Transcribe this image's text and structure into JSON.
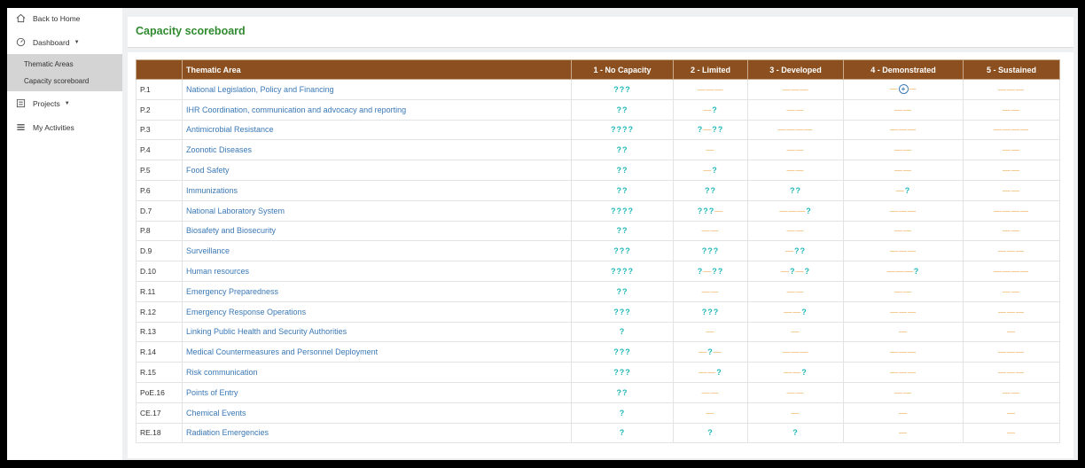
{
  "sidebar": {
    "back_home": "Back to Home",
    "dashboard": "Dashboard",
    "thematic_areas": "Thematic Areas",
    "capacity_scoreboard": "Capacity scoreboard",
    "projects": "Projects",
    "my_activities": "My Activities"
  },
  "page_title": "Capacity scoreboard",
  "table": {
    "headers": [
      "Thematic Area",
      "1 - No Capacity",
      "2 - Limited",
      "3 - Developed",
      "4 - Demonstrated",
      "5 - Sustained"
    ],
    "rows": [
      {
        "code": "P.1",
        "area": "National Legislation, Policy and Financing",
        "levels": [
          "???",
          "———",
          "———",
          "—+—",
          "———"
        ]
      },
      {
        "code": "P.2",
        "area": "IHR Coordination, communication and advocacy and reporting",
        "levels": [
          "??",
          "—?",
          "——",
          "——",
          "——"
        ]
      },
      {
        "code": "P.3",
        "area": "Antimicrobial Resistance",
        "levels": [
          "????",
          "?—??",
          "————",
          "———",
          "————"
        ]
      },
      {
        "code": "P.4",
        "area": "Zoonotic Diseases",
        "levels": [
          "??",
          "—",
          "——",
          "——",
          "——"
        ]
      },
      {
        "code": "P.5",
        "area": "Food Safety",
        "levels": [
          "??",
          "—?",
          "——",
          "——",
          "——"
        ]
      },
      {
        "code": "P.6",
        "area": "Immunizations",
        "levels": [
          "??",
          "??",
          "??",
          "—?",
          "——"
        ]
      },
      {
        "code": "D.7",
        "area": "National Laboratory System",
        "levels": [
          "????",
          "???—",
          "———?",
          "———",
          "————"
        ]
      },
      {
        "code": "P.8",
        "area": "Biosafety and Biosecurity",
        "levels": [
          "??",
          "——",
          "——",
          "——",
          "——"
        ]
      },
      {
        "code": "D.9",
        "area": "Surveillance",
        "levels": [
          "???",
          "???",
          "—??",
          "———",
          "———"
        ]
      },
      {
        "code": "D.10",
        "area": "Human resources",
        "levels": [
          "????",
          "?—??",
          "—?—?",
          "———?",
          "————"
        ]
      },
      {
        "code": "R.11",
        "area": "Emergency Preparedness",
        "levels": [
          "??",
          "——",
          "——",
          "——",
          "——"
        ]
      },
      {
        "code": "R.12",
        "area": "Emergency Response Operations",
        "levels": [
          "???",
          "???",
          "——?",
          "———",
          "———"
        ]
      },
      {
        "code": "R.13",
        "area": "Linking Public Health and Security Authorities",
        "levels": [
          "?",
          "—",
          "—",
          "—",
          "—"
        ]
      },
      {
        "code": "R.14",
        "area": "Medical Countermeasures and Personnel Deployment",
        "levels": [
          "???",
          "—?—",
          "———",
          "———",
          "———"
        ]
      },
      {
        "code": "R.15",
        "area": "Risk communication",
        "levels": [
          "???",
          "——?",
          "——?",
          "———",
          "———"
        ]
      },
      {
        "code": "PoE.16",
        "area": "Points of Entry",
        "levels": [
          "??",
          "——",
          "——",
          "——",
          "——"
        ]
      },
      {
        "code": "CE.17",
        "area": "Chemical Events",
        "levels": [
          "?",
          "—",
          "—",
          "—",
          "—"
        ]
      },
      {
        "code": "RE.18",
        "area": "Radiation Emergencies",
        "levels": [
          "?",
          "?",
          "?",
          "—",
          "—"
        ]
      }
    ]
  }
}
